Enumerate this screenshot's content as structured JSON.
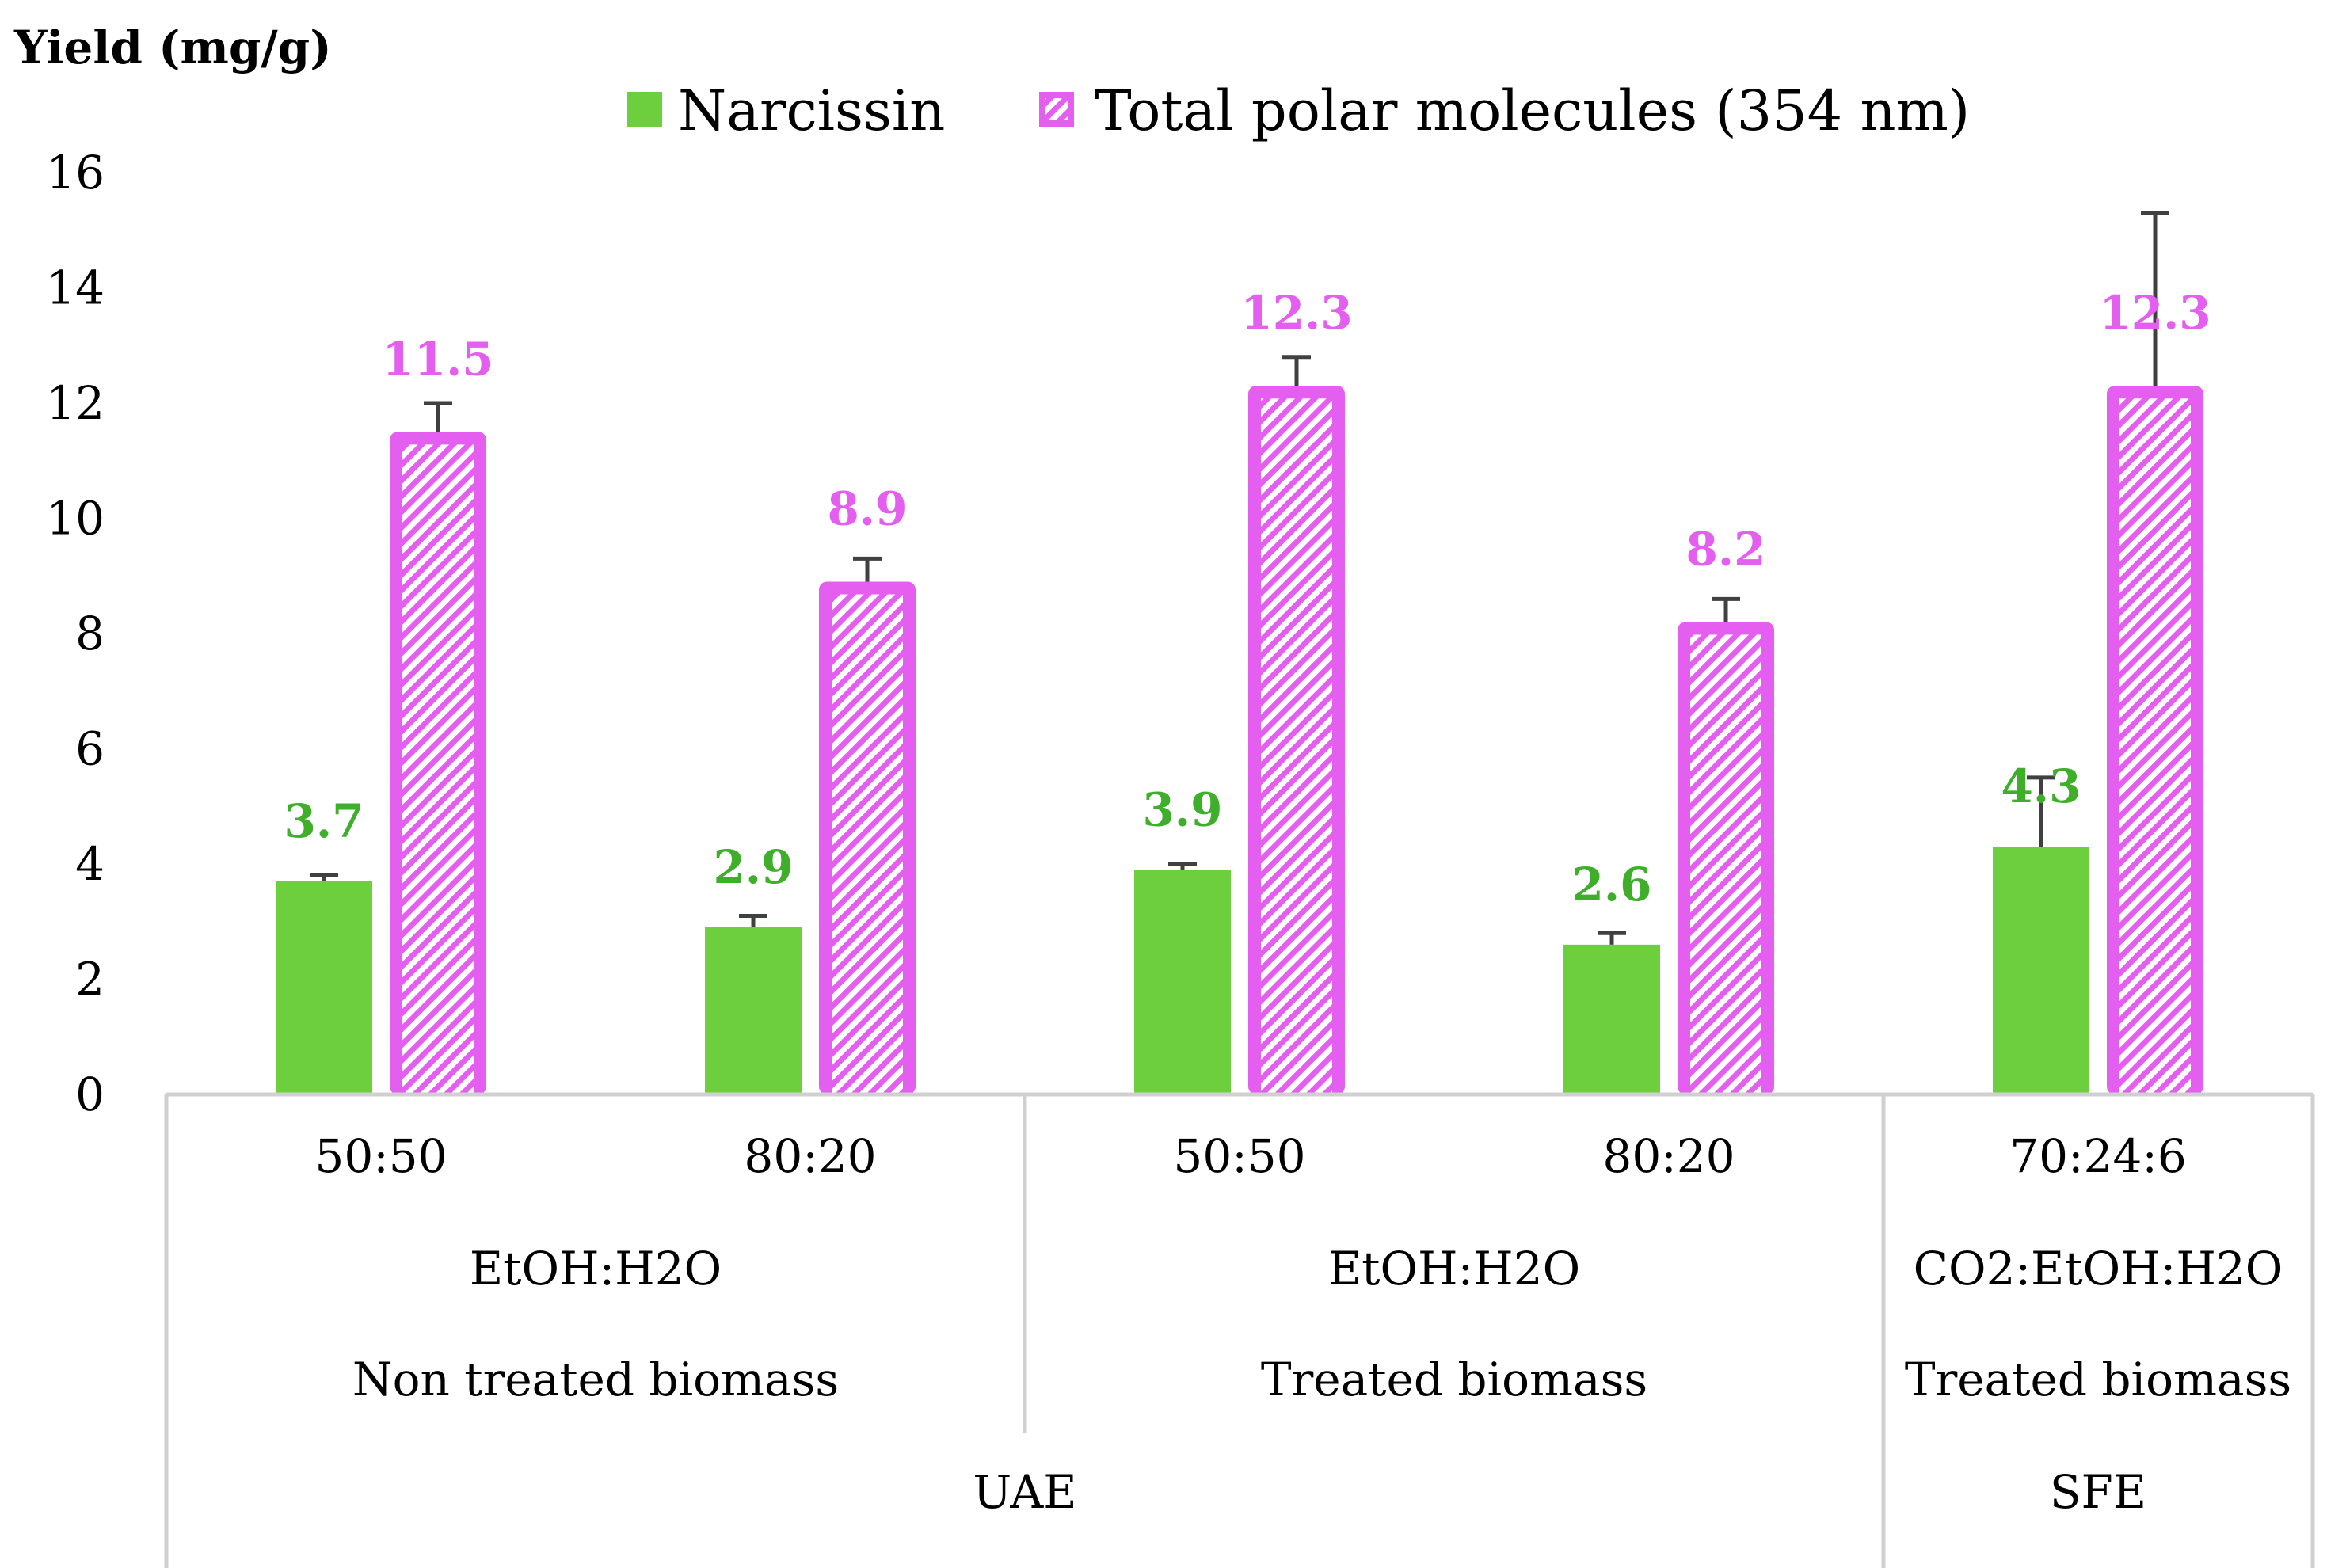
{
  "chart_data": {
    "type": "bar",
    "ylabel": "Yield (mg/g)",
    "ylim": [
      0,
      16
    ],
    "yticks": [
      0,
      2,
      4,
      6,
      8,
      10,
      12,
      14,
      16
    ],
    "grid": false,
    "legend_position": "top",
    "categories": [
      {
        "ratio": "50:50",
        "solvent": "EtOH:H2O",
        "biomass": "Non treated biomass",
        "method": "UAE"
      },
      {
        "ratio": "80:20",
        "solvent": "EtOH:H2O",
        "biomass": "Non treated biomass",
        "method": "UAE"
      },
      {
        "ratio": "50:50",
        "solvent": "EtOH:H2O",
        "biomass": "Treated biomass",
        "method": "UAE"
      },
      {
        "ratio": "80:20",
        "solvent": "EtOH:H2O",
        "biomass": "Treated biomass",
        "method": "UAE"
      },
      {
        "ratio": "70:24:6",
        "solvent": "CO2:EtOH:H2O",
        "biomass": "Treated biomass",
        "method": "SFE"
      }
    ],
    "groups": {
      "solvent": [
        {
          "label": "EtOH:H2O",
          "span": [
            0,
            1
          ]
        },
        {
          "label": "EtOH:H2O",
          "span": [
            2,
            3
          ]
        },
        {
          "label": "CO2:EtOH:H2O",
          "span": [
            4,
            4
          ]
        }
      ],
      "biomass": [
        {
          "label": "Non treated biomass",
          "span": [
            0,
            1
          ]
        },
        {
          "label": "Treated biomass",
          "span": [
            2,
            3
          ]
        },
        {
          "label": "Treated biomass",
          "span": [
            4,
            4
          ]
        }
      ],
      "method": [
        {
          "label": "UAE",
          "span": [
            0,
            3
          ]
        },
        {
          "label": "SFE",
          "span": [
            4,
            4
          ]
        }
      ]
    },
    "series": [
      {
        "name": "Narcissin",
        "color": "#6dcf3e",
        "label_color": "#3fae2a",
        "style": "solid",
        "values": [
          3.7,
          2.9,
          3.9,
          2.6,
          4.3
        ],
        "labels": [
          "3.7",
          "2.9",
          "3.9",
          "2.6",
          "4.3"
        ],
        "errors": [
          0.1,
          0.2,
          0.1,
          0.2,
          1.2
        ]
      },
      {
        "name": "Total polar molecules (354 nm)",
        "color": "#e45ef0",
        "label_color": "#e45ef0",
        "style": "hatched",
        "values": [
          11.5,
          8.9,
          12.3,
          8.2,
          12.3
        ],
        "labels": [
          "11.5",
          "8.9",
          "12.3",
          "8.2",
          "12.3"
        ],
        "errors": [
          0.5,
          0.4,
          0.5,
          0.4,
          3.0
        ]
      }
    ]
  }
}
